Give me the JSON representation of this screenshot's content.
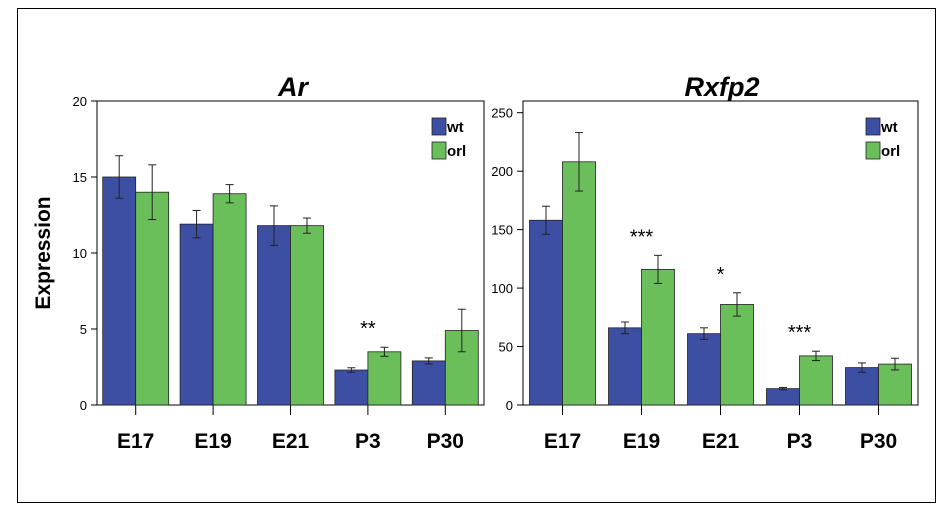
{
  "colors": {
    "wt": "#3d4fa3",
    "orl": "#6abf5a",
    "axis": "#000000"
  },
  "chart_data": [
    {
      "type": "bar",
      "title": "Ar",
      "ylabel": "Expression",
      "xlabel": "",
      "ylim": [
        0,
        20
      ],
      "yticks": [
        0,
        5,
        10,
        15,
        20
      ],
      "categories": [
        "E17",
        "E19",
        "E21",
        "P3",
        "P30"
      ],
      "series": [
        {
          "name": "wt",
          "values": [
            15.0,
            11.9,
            11.8,
            2.3,
            2.9
          ],
          "errors": [
            1.4,
            0.9,
            1.3,
            0.15,
            0.2
          ]
        },
        {
          "name": "orl",
          "values": [
            14.0,
            13.9,
            11.8,
            3.5,
            4.9
          ],
          "errors": [
            1.8,
            0.6,
            0.5,
            0.3,
            1.4
          ]
        }
      ],
      "annotations": [
        {
          "category": "P3",
          "text": "**"
        }
      ],
      "legend": {
        "position": "top-right",
        "entries": [
          "wt",
          "orl"
        ]
      },
      "grid": false
    },
    {
      "type": "bar",
      "title": "Rxfp2",
      "ylabel": "",
      "xlabel": "",
      "ylim": [
        0,
        260
      ],
      "yticks": [
        0,
        50,
        100,
        150,
        200,
        250
      ],
      "categories": [
        "E17",
        "E19",
        "E21",
        "P3",
        "P30"
      ],
      "series": [
        {
          "name": "wt",
          "values": [
            158,
            66,
            61,
            14,
            32
          ],
          "errors": [
            12,
            5,
            5,
            1,
            4
          ]
        },
        {
          "name": "orl",
          "values": [
            208,
            116,
            86,
            42,
            35
          ],
          "errors": [
            25,
            12,
            10,
            4,
            5
          ]
        }
      ],
      "annotations": [
        {
          "category": "E19",
          "text": "***"
        },
        {
          "category": "E21",
          "text": "*"
        },
        {
          "category": "P3",
          "text": "***"
        }
      ],
      "legend": {
        "position": "top-right",
        "entries": [
          "wt",
          "orl"
        ]
      },
      "grid": false
    }
  ]
}
